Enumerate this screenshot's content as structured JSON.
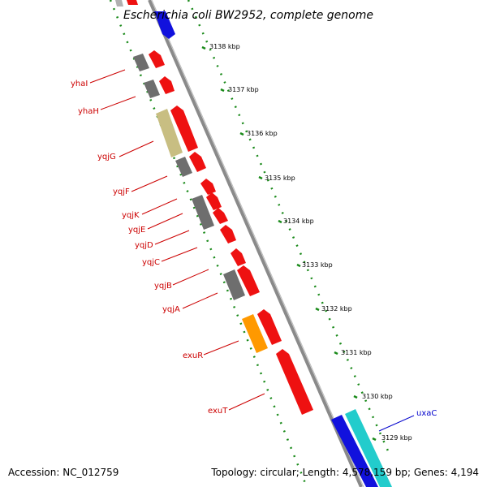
{
  "title": "Escherichia coli BW2952, complete genome",
  "footer": {
    "accession": "Accession: NC_012759",
    "info": "Topology: circular; Length: 4,578,159 bp; Genes: 4,194"
  },
  "colors": {
    "backbone": "#8a8a8a",
    "dots": "#1a8a1a",
    "red": "#ee1111",
    "grey": "#6e6e6e",
    "tan": "#c8be82",
    "orange": "#ff9900",
    "blue": "#1111dd",
    "cyan": "#22cccc",
    "label_red": "#cc0000",
    "label_blue": "#0000cc"
  },
  "kbp_ticks": [
    "3138 kbp",
    "3137 kbp",
    "3136 kbp",
    "3135 kbp",
    "3134 kbp",
    "3133 kbp",
    "3132 kbp",
    "3131 kbp",
    "3130 kbp",
    "3129 kbp"
  ],
  "gene_labels": [
    {
      "name": "yhaI",
      "color": "red"
    },
    {
      "name": "yhaH",
      "color": "red"
    },
    {
      "name": "yqjG",
      "color": "red"
    },
    {
      "name": "yqjF",
      "color": "red"
    },
    {
      "name": "yqjK",
      "color": "red"
    },
    {
      "name": "yqjE",
      "color": "red"
    },
    {
      "name": "yqjD",
      "color": "red"
    },
    {
      "name": "yqjC",
      "color": "red"
    },
    {
      "name": "yqjB",
      "color": "red"
    },
    {
      "name": "yqjA",
      "color": "red"
    },
    {
      "name": "exuR",
      "color": "red"
    },
    {
      "name": "exuT",
      "color": "red"
    },
    {
      "name": "uxaC",
      "color": "blue"
    }
  ]
}
